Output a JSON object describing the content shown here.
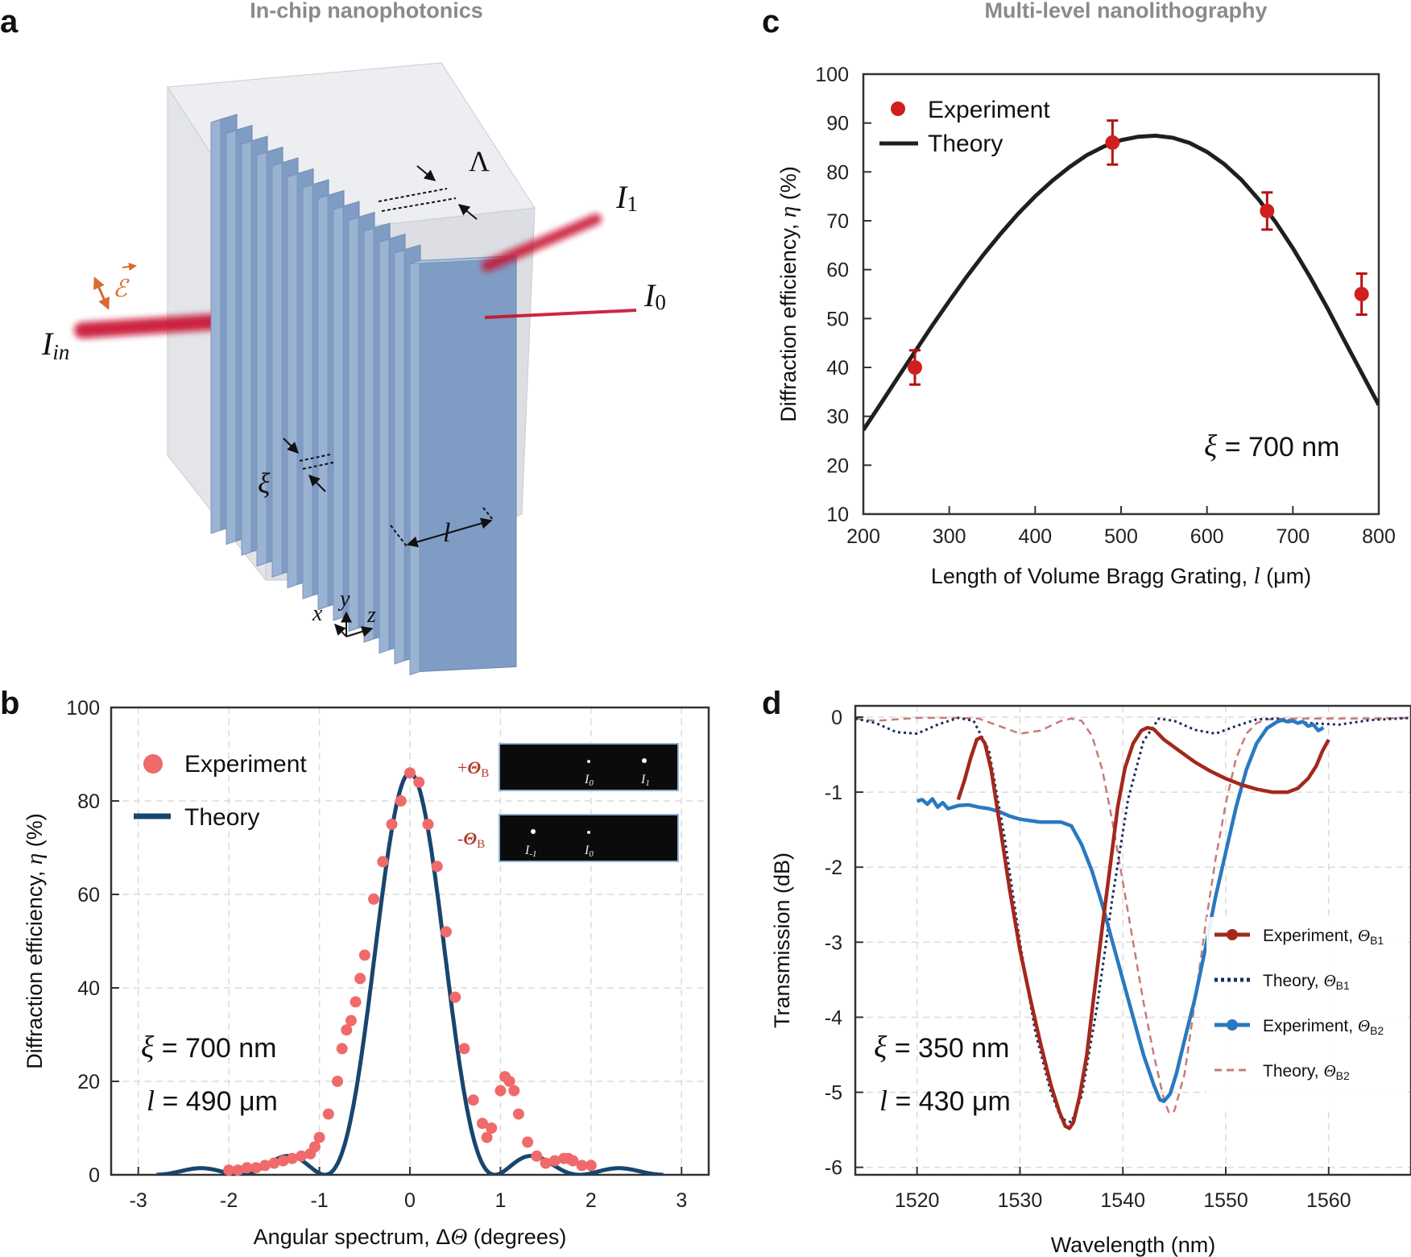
{
  "panels": {
    "a": {
      "letter": "a",
      "title": "In-chip nanophotonics",
      "labels": {
        "lambda": "Λ",
        "I1": "I",
        "I1_sub": "1",
        "I0": "I",
        "I0_sub": "0",
        "Iin": "I",
        "Iin_sub": "in",
        "xi": "ξ",
        "l": "l",
        "E": "ℰ",
        "axis_x": "x",
        "axis_y": "y",
        "axis_z": "z"
      },
      "colors": {
        "grating": "#7e9ac0",
        "block": "#dfe1e6",
        "beam": "#c8102e",
        "field": "#d96a2b"
      }
    },
    "c": {
      "letter": "c",
      "title": "Multi-level nanolithography"
    },
    "b": {
      "letter": "b",
      "inset": {
        "plus": "+",
        "minus": "-",
        "theta": "Θ",
        "sub": "B",
        "row1": {
          "a": "I",
          "a_sub": "0",
          "b": "I",
          "b_sub": "1"
        },
        "row2": {
          "a": "I",
          "a_sub": "-1",
          "b": "I",
          "b_sub": "0"
        }
      }
    },
    "d": {
      "letter": "d"
    }
  },
  "chart_data": [
    {
      "id": "c",
      "type": "scatter",
      "xlabel": "Length of Volume Bragg Grating, ",
      "xlabel_sym": "l",
      "xlabel_unit": " (μm)",
      "ylabel": "Diffraction efficiency, ",
      "ylabel_sym": "η",
      "ylabel_unit": " (%)",
      "xlim": [
        200,
        800
      ],
      "ylim": [
        10,
        100
      ],
      "xticks": [
        200,
        300,
        400,
        500,
        600,
        700,
        800
      ],
      "yticks": [
        10,
        20,
        30,
        40,
        50,
        60,
        70,
        80,
        90,
        100
      ],
      "grid": false,
      "legend": "top-left",
      "series": [
        {
          "name": "Experiment",
          "kind": "points",
          "color": "#d11f1f",
          "errcolor": "#b01414",
          "x": [
            260,
            490,
            670,
            780
          ],
          "y": [
            40,
            86,
            72,
            55
          ],
          "err": [
            3.5,
            4.5,
            3.8,
            4.2
          ]
        },
        {
          "name": "Theory",
          "kind": "line",
          "color": "#1f1f1f",
          "x": [
            200,
            220,
            240,
            260,
            280,
            300,
            320,
            340,
            360,
            380,
            400,
            420,
            440,
            460,
            480,
            500,
            520,
            540,
            560,
            580,
            600,
            620,
            640,
            660,
            680,
            700,
            720,
            740,
            760,
            780,
            800
          ],
          "y": [
            27.2,
            32.5,
            37.9,
            43.2,
            48.5,
            53.6,
            58.5,
            63.1,
            67.4,
            71.4,
            75.0,
            78.2,
            81.0,
            83.4,
            85.2,
            86.5,
            87.2,
            87.4,
            87.0,
            85.9,
            84.1,
            81.6,
            78.4,
            74.4,
            69.7,
            64.4,
            58.5,
            52.2,
            45.5,
            38.9,
            32.3
          ]
        }
      ],
      "annotations": [
        {
          "sym": "ξ",
          "text": " = 700 nm"
        }
      ]
    },
    {
      "id": "b",
      "type": "scatter",
      "xlabel": "Angular spectrum, Δ",
      "xlabel_sym": "Θ",
      "xlabel_unit": " (degrees)",
      "ylabel": "Diffraction efficiency, ",
      "ylabel_sym": "η",
      "ylabel_unit": " (%)",
      "xlim": [
        -3.3,
        3.3
      ],
      "ylim": [
        0,
        100
      ],
      "xticks": [
        -3,
        -2,
        -1,
        0,
        1,
        2,
        3
      ],
      "xticklabels": [
        "-3",
        "-2",
        "-1",
        "0",
        "1",
        "2",
        "3"
      ],
      "yticks": [
        0,
        20,
        40,
        60,
        80,
        100
      ],
      "grid": true,
      "legend": "top-left",
      "series": [
        {
          "name": "Experiment",
          "kind": "points",
          "color": "#f06a6a",
          "x": [
            -2.0,
            -1.9,
            -1.8,
            -1.7,
            -1.6,
            -1.5,
            -1.4,
            -1.3,
            -1.2,
            -1.1,
            -1.05,
            -1.0,
            -0.9,
            -0.8,
            -0.75,
            -0.7,
            -0.65,
            -0.6,
            -0.55,
            -0.5,
            -0.4,
            -0.3,
            -0.2,
            -0.1,
            0.0,
            0.1,
            0.2,
            0.3,
            0.4,
            0.5,
            0.6,
            0.7,
            0.8,
            0.85,
            0.9,
            1.0,
            1.05,
            1.1,
            1.15,
            1.2,
            1.3,
            1.4,
            1.5,
            1.6,
            1.7,
            1.75,
            1.8,
            1.9,
            2.0
          ],
          "y": [
            1,
            1,
            1.5,
            1.5,
            2,
            2.5,
            3,
            3.5,
            4,
            4.5,
            6,
            8,
            13,
            20,
            27,
            31,
            33,
            37,
            42,
            47,
            59,
            67,
            75,
            80,
            86,
            84,
            75,
            66,
            52,
            38,
            27,
            16,
            11,
            8,
            10,
            18,
            21,
            20,
            18,
            13,
            7,
            4,
            2.5,
            3,
            3.5,
            3.5,
            3,
            2,
            2
          ]
        },
        {
          "name": "Theory",
          "kind": "line",
          "color": "#17466f",
          "expr": "sinc2",
          "xrange": [
            -2.8,
            2.8
          ],
          "peak": 86
        }
      ],
      "annotations": [
        {
          "sym": "ξ",
          "text": " = 700 nm"
        },
        {
          "sym": "l",
          "text": " = 490 μm"
        }
      ]
    },
    {
      "id": "d",
      "type": "line",
      "xlabel": "Wavelength (nm)",
      "ylabel": "Transmission (dB)",
      "xlim": [
        1514,
        1568
      ],
      "ylim": [
        -6.1,
        0.15
      ],
      "xticks": [
        1520,
        1530,
        1540,
        1550,
        1560
      ],
      "yticks": [
        0,
        -1,
        -2,
        -3,
        -4,
        -5,
        -6
      ],
      "grid": true,
      "legend": "right",
      "series": [
        {
          "name": "Experiment, ",
          "sym": "Θ",
          "sub": "B1",
          "kind": "solid",
          "color": "#a3281c",
          "x": [
            1524.0,
            1524.6,
            1525.2,
            1525.8,
            1526.2,
            1526.6,
            1527.2,
            1528.0,
            1529.0,
            1530.0,
            1531.0,
            1532.0,
            1533.0,
            1533.8,
            1534.4,
            1534.8,
            1535.2,
            1535.8,
            1536.5,
            1537.2,
            1538.0,
            1538.8,
            1539.5,
            1540.2,
            1541.0,
            1541.8,
            1542.4,
            1543.0,
            1544.0,
            1545.5,
            1547.0,
            1548.5,
            1550.0,
            1551.5,
            1553.0,
            1554.5,
            1556.0,
            1557.0,
            1558.0,
            1558.8,
            1559.4,
            1560.0
          ],
          "y": [
            -1.1,
            -0.85,
            -0.55,
            -0.3,
            -0.27,
            -0.35,
            -0.7,
            -1.4,
            -2.3,
            -3.1,
            -3.75,
            -4.35,
            -4.9,
            -5.25,
            -5.45,
            -5.48,
            -5.4,
            -5.05,
            -4.5,
            -3.7,
            -2.8,
            -1.95,
            -1.2,
            -0.68,
            -0.35,
            -0.18,
            -0.14,
            -0.16,
            -0.3,
            -0.45,
            -0.6,
            -0.72,
            -0.82,
            -0.9,
            -0.96,
            -1.0,
            -1.0,
            -0.95,
            -0.82,
            -0.65,
            -0.45,
            -0.3
          ]
        },
        {
          "name": "Theory, ",
          "sym": "Θ",
          "sub": "B1",
          "kind": "dotted",
          "color": "#1b2d5c",
          "x": [
            1514,
            1516,
            1518,
            1520,
            1522,
            1524,
            1525.5,
            1527,
            1528.5,
            1530,
            1531.5,
            1533,
            1534,
            1535,
            1536,
            1537.5,
            1539,
            1540.5,
            1542,
            1543.5,
            1545,
            1547,
            1549,
            1551,
            1553,
            1555,
            1558,
            1561,
            1564,
            1568
          ],
          "y": [
            -0.02,
            -0.08,
            -0.2,
            -0.22,
            -0.1,
            -0.01,
            -0.05,
            -0.45,
            -1.6,
            -3.0,
            -4.2,
            -5.0,
            -5.35,
            -5.4,
            -5.05,
            -3.85,
            -2.4,
            -1.1,
            -0.32,
            -0.02,
            -0.05,
            -0.17,
            -0.22,
            -0.12,
            -0.03,
            -0.02,
            -0.08,
            -0.1,
            -0.04,
            -0.01
          ]
        },
        {
          "name": "Experiment, ",
          "sym": "Θ",
          "sub": "B2",
          "kind": "solid",
          "color": "#2979c0",
          "x": [
            1520.0,
            1520.5,
            1521.0,
            1521.5,
            1522.0,
            1522.5,
            1523.0,
            1524.0,
            1525.0,
            1526.0,
            1527.0,
            1528.0,
            1529.0,
            1530.0,
            1531.0,
            1532.0,
            1533.0,
            1534.0,
            1535.0,
            1536.0,
            1537.0,
            1538.0,
            1539.0,
            1540.0,
            1541.0,
            1542.0,
            1543.0,
            1543.6,
            1544.0,
            1544.6,
            1545.2,
            1546.0,
            1547.0,
            1548.0,
            1549.0,
            1550.0,
            1551.0,
            1552.0,
            1553.0,
            1554.0,
            1555.0,
            1555.5,
            1556.0,
            1556.5,
            1557.0,
            1557.5,
            1558.0,
            1558.5,
            1559.0,
            1559.5
          ],
          "y": [
            -1.12,
            -1.1,
            -1.16,
            -1.09,
            -1.2,
            -1.14,
            -1.22,
            -1.18,
            -1.17,
            -1.2,
            -1.22,
            -1.26,
            -1.32,
            -1.36,
            -1.38,
            -1.4,
            -1.4,
            -1.4,
            -1.45,
            -1.7,
            -2.05,
            -2.5,
            -3.0,
            -3.5,
            -4.0,
            -4.5,
            -4.9,
            -5.1,
            -5.12,
            -5.02,
            -4.75,
            -4.3,
            -3.75,
            -3.1,
            -2.4,
            -1.8,
            -1.2,
            -0.7,
            -0.35,
            -0.15,
            -0.06,
            -0.04,
            -0.06,
            -0.05,
            -0.08,
            -0.06,
            -0.12,
            -0.1,
            -0.18,
            -0.14
          ]
        },
        {
          "name": "Theory, ",
          "sym": "Θ",
          "sub": "B2",
          "kind": "dashed",
          "color": "#c87a78",
          "x": [
            1514,
            1516,
            1518,
            1520,
            1522,
            1524,
            1526,
            1528,
            1530,
            1532,
            1534,
            1535,
            1536,
            1537,
            1538,
            1539,
            1540,
            1541,
            1542,
            1543,
            1544,
            1544.5,
            1545,
            1546,
            1547,
            1548,
            1549,
            1550,
            1551,
            1552,
            1553,
            1554,
            1556,
            1560,
            1564,
            1568
          ],
          "y": [
            -0.02,
            -0.05,
            -0.03,
            -0.01,
            -0.01,
            -0.01,
            -0.02,
            -0.12,
            -0.22,
            -0.18,
            -0.05,
            -0.02,
            -0.05,
            -0.25,
            -0.7,
            -1.4,
            -2.2,
            -3.0,
            -3.8,
            -4.5,
            -5.1,
            -5.28,
            -5.25,
            -4.75,
            -3.8,
            -2.8,
            -1.9,
            -1.15,
            -0.55,
            -0.22,
            -0.08,
            -0.03,
            -0.02,
            -0.02,
            -0.02,
            -0.01
          ]
        }
      ],
      "annotations": [
        {
          "sym": "ξ",
          "text": " = 350 nm"
        },
        {
          "sym": "l",
          "text": " = 430 μm"
        }
      ]
    }
  ]
}
